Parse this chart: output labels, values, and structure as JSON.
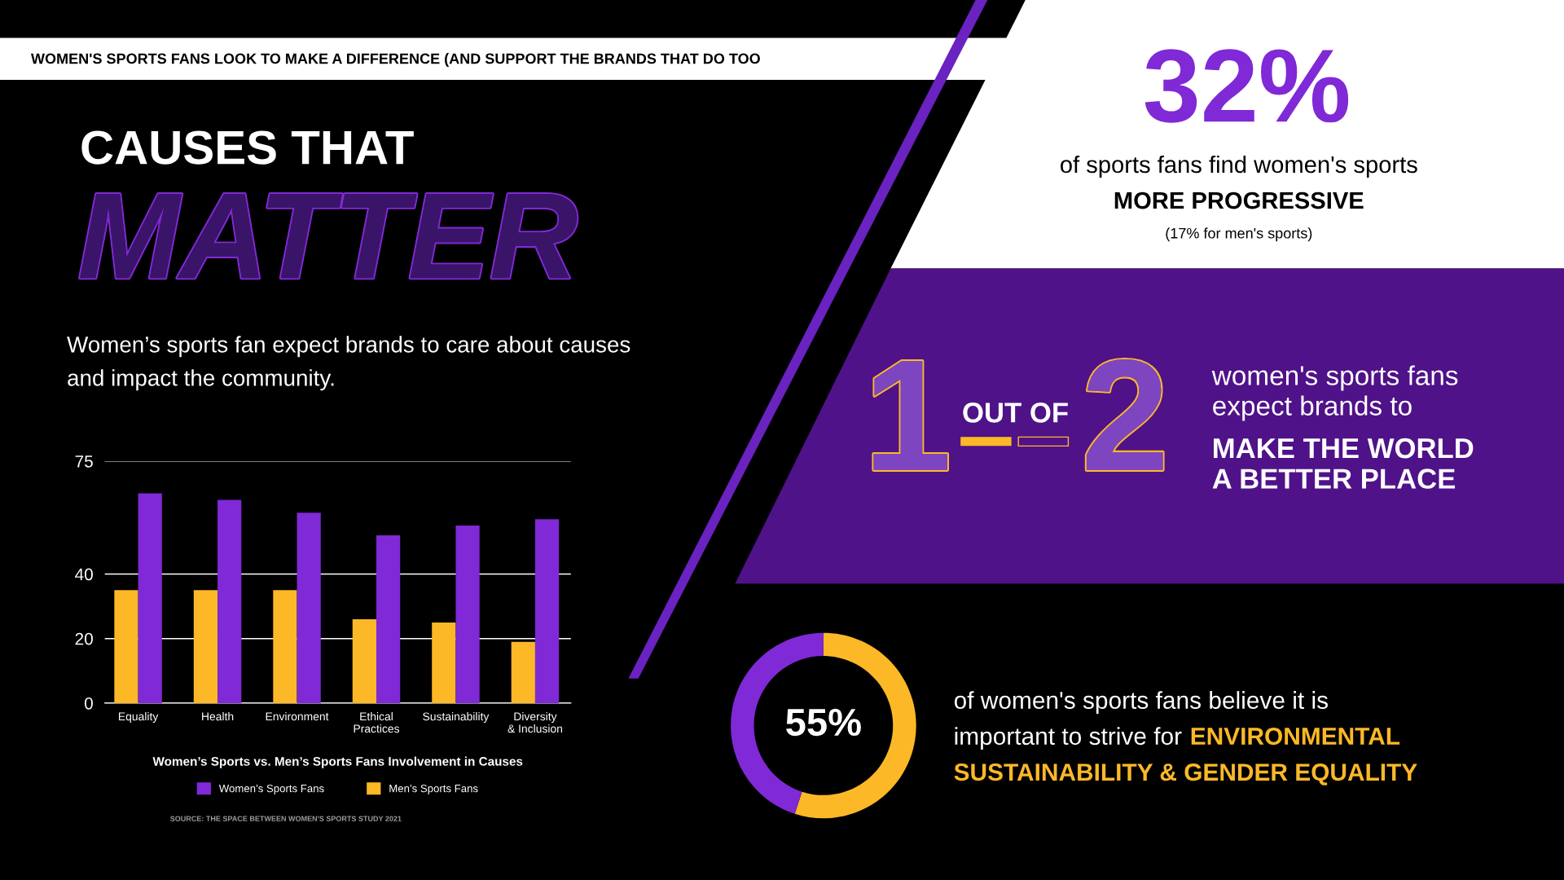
{
  "chart_data": [
    {
      "type": "other",
      "title": "WOMEN'S SPORTS FANS LOOK TO MAKE A DIFFERENCE (AND SUPPORT THE BRANDS THAT DO TOO",
      "annotations": [
        "CAUSES THAT",
        "MATTER",
        "Women’s sports fan expect brands to care about causes\nand impact the community.",
        "32%",
        "of sports fans find women's sports",
        "MORE PROGRESSIVE",
        "(17% for men's sports)",
        "1",
        "OUT OF",
        "2",
        "women's sports fans\nexpect brands to",
        "MAKE THE WORLD\nA BETTER PLACE"
      ]
    },
    {
      "type": "bar",
      "title": "Women’s Sports vs. Men’s Sports Fans Involvement in Causes",
      "categories": [
        "Equality",
        "Health",
        "Environment",
        "Ethical\nPractices",
        "Sustainability",
        "Diversity\n& Inclusion"
      ],
      "series": [
        {
          "name": "Men’s Sports Fans",
          "color": "#fdb827",
          "values": [
            35,
            35,
            35,
            26,
            25,
            19
          ]
        },
        {
          "name": "Women’s Sports Fans",
          "color": "#8029d6",
          "values": [
            65,
            63,
            59,
            52,
            55,
            57
          ]
        }
      ],
      "ylim": [
        0,
        75
      ],
      "yticks": [
        0,
        20,
        40,
        75
      ],
      "grid": "y",
      "legend": "bottom",
      "annotations": [
        "SOURCE: THE SPACE BETWEEN WOMEN'S SPORTS STUDY 2021"
      ]
    },
    {
      "type": "donut",
      "categories": [
        null,
        null
      ],
      "values": [
        55,
        45
      ],
      "colors": [
        "#fdb827",
        "#8029d6"
      ],
      "value_labels": [
        "55%",
        null
      ],
      "annotations": [
        "of women's sports fans believe it is\nimportant to strive for",
        "ENVIRONMENTAL SUSTAINABILITY & GENDER EQUALITY"
      ]
    }
  ]
}
